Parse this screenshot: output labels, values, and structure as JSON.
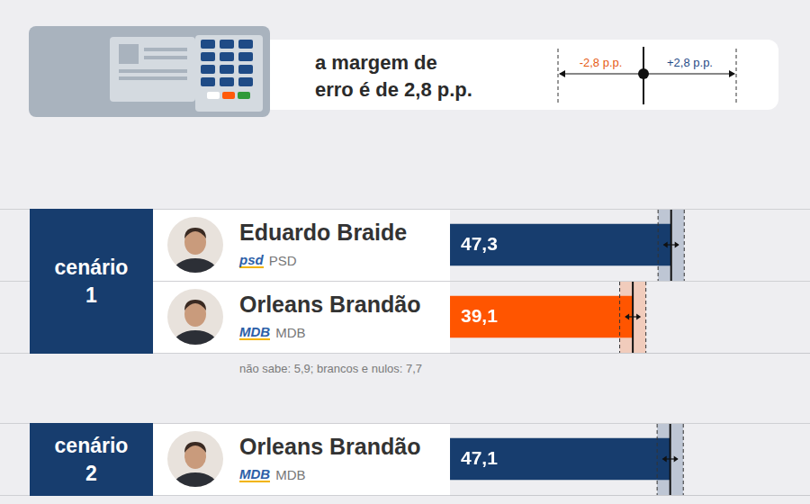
{
  "header": {
    "margin_text_lines": [
      "a margem de",
      "erro é de 2,8 p.p."
    ],
    "margin_labels": [
      "-2,8 p.p.",
      "+2,8 p.p."
    ]
  },
  "chart_data": [
    {
      "type": "bar",
      "orientation": "horizontal",
      "title": "cenário 1",
      "categories": [
        "Eduardo Braide",
        "Orleans Brandão"
      ],
      "party_logos": [
        "psd",
        "MDB"
      ],
      "parties": [
        "PSD",
        "MDB"
      ],
      "values": [
        47.3,
        39.1
      ],
      "value_labels": [
        "47,3",
        "39,1"
      ],
      "errors": [
        2.8,
        2.8
      ],
      "colors": [
        "#173d6e",
        "#ff5500"
      ],
      "xlim": [
        0,
        77
      ],
      "data_labels": true,
      "tick_labels": false,
      "grid": false,
      "note": "não sabe: 5,9; brancos e nulos: 7,7"
    },
    {
      "type": "bar",
      "orientation": "horizontal",
      "title": "cenário 2",
      "categories": [
        "Orleans Brandão"
      ],
      "party_logos": [
        "MDB"
      ],
      "parties": [
        "MDB"
      ],
      "values": [
        47.1
      ],
      "value_labels": [
        "47,1"
      ],
      "errors": [
        2.8
      ],
      "colors": [
        "#173d6e"
      ],
      "xlim": [
        0,
        77
      ],
      "data_labels": true,
      "tick_labels": false,
      "grid": false
    }
  ]
}
